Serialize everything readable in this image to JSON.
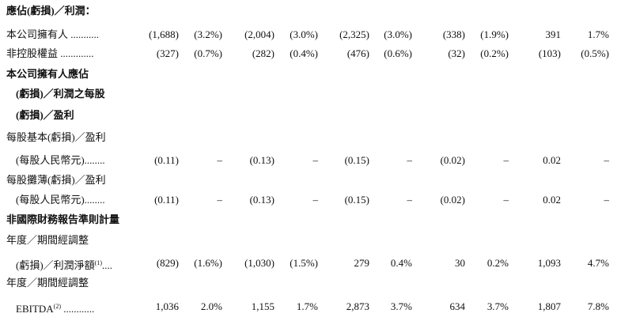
{
  "rows": [
    {
      "label": "應佔(虧損)／利潤："
    },
    {
      "label": "本公司擁有人 ...........",
      "values": [
        "(1,688)",
        "(3.2%)",
        "(2,004)",
        "(3.0%)",
        "(2,325)",
        "(3.0%)",
        "(338)",
        "(1.9%)",
        "391",
        "1.7%"
      ]
    },
    {
      "label": "非控股權益 .............",
      "values": [
        "(327)",
        "(0.7%)",
        "(282)",
        "(0.4%)",
        "(476)",
        "(0.6%)",
        "(32)",
        "(0.2%)",
        "(103)",
        "(0.5%)"
      ]
    },
    {
      "label": "本公司擁有人應佔"
    },
    {
      "label": "(虧損)／利潤之每股"
    },
    {
      "label": "(虧損)／盈利"
    },
    {
      "label": "每股基本(虧損)／盈利"
    },
    {
      "label": "(每股人民幣元)........",
      "values": [
        "(0.11)",
        "–",
        "(0.13)",
        "–",
        "(0.15)",
        "–",
        "(0.02)",
        "–",
        "0.02",
        "–"
      ]
    },
    {
      "label": "每股攤薄(虧損)／盈利"
    },
    {
      "label": "(每股人民幣元)........",
      "values": [
        "(0.11)",
        "–",
        "(0.13)",
        "–",
        "(0.15)",
        "–",
        "(0.02)",
        "–",
        "0.02",
        "–"
      ]
    },
    {
      "label": "非國際財務報告準則計量"
    },
    {
      "label": "年度／期間經調整"
    },
    {
      "label": "(虧損)／利潤淨額",
      "note": "(1)",
      "leader": "....",
      "values": [
        "(829)",
        "(1.6%)",
        "(1,030)",
        "(1.5%)",
        "279",
        "0.4%",
        "30",
        "0.2%",
        "1,093",
        "4.7%"
      ]
    },
    {
      "label": "年度／期間經調整"
    },
    {
      "label": "EBITDA",
      "note": "(2)",
      "leader": " ............",
      "values": [
        "1,036",
        "2.0%",
        "1,155",
        "1.7%",
        "2,873",
        "3.7%",
        "634",
        "3.7%",
        "1,807",
        "7.8%"
      ]
    }
  ]
}
